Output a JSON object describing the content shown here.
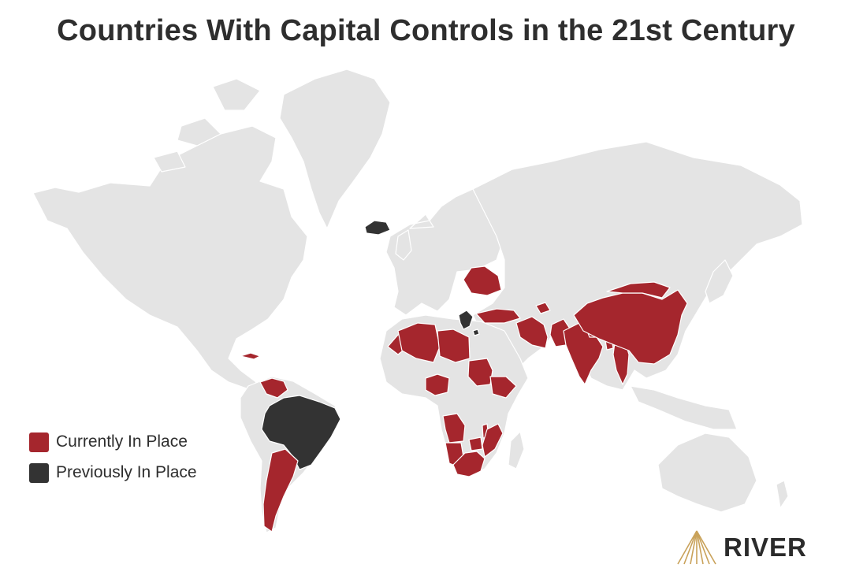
{
  "title": "Countries With Capital Controls in the 21st Century",
  "colors": {
    "current": "#a5262d",
    "previous": "#333333",
    "land": "#e4e4e4",
    "logo_gold": "#c9a25a"
  },
  "legend": {
    "current_label": "Currently In Place",
    "previous_label": "Previously In Place"
  },
  "brand": {
    "name": "RIVER",
    "icon": "river-logo-icon"
  },
  "countries_current": [
    "Argentina",
    "Venezuela",
    "Cuba",
    "Morocco",
    "Algeria",
    "Libya",
    "Nigeria",
    "Sudan",
    "Ethiopia",
    "Angola",
    "Malawi",
    "Mozambique",
    "Zimbabwe",
    "Namibia",
    "South Africa",
    "Ukraine",
    "Turkey",
    "Azerbaijan",
    "Iran",
    "Pakistan",
    "India",
    "Nepal",
    "Bangladesh",
    "Myanmar",
    "China",
    "Mongolia"
  ],
  "countries_previous": [
    "Iceland",
    "Cyprus",
    "Greece",
    "Brazil"
  ]
}
